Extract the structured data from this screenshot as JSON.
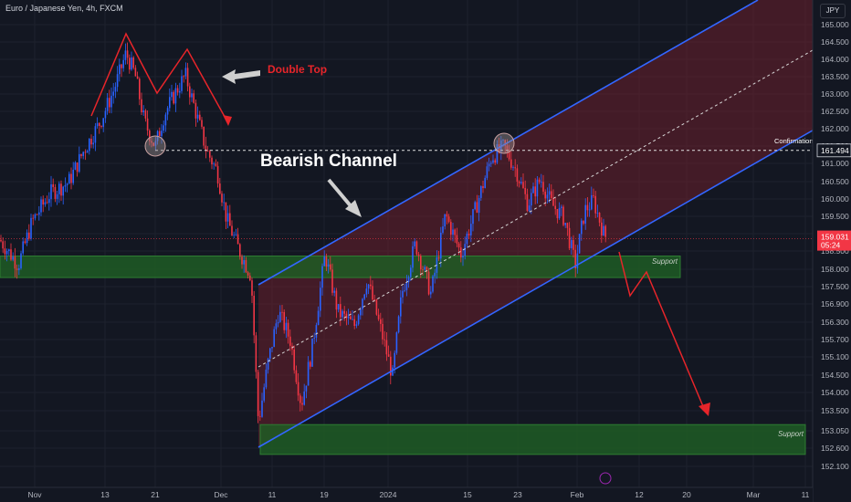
{
  "header": {
    "symbol_title": "Euro / Japanese Yen, 4h, FXCM",
    "currency": "JPY"
  },
  "chart_data": {
    "type": "candlestick",
    "ylim": [
      152.1,
      165.4
    ],
    "y_ticks": [
      "165.000",
      "164.500",
      "164.000",
      "163.500",
      "163.000",
      "162.500",
      "162.000",
      "161.500",
      "161.000",
      "160.500",
      "160.000",
      "159.500",
      "159.000",
      "158.500",
      "158.000",
      "157.500",
      "156.900",
      "156.300",
      "155.700",
      "155.100",
      "154.500",
      "154.000",
      "153.500",
      "153.050",
      "152.600",
      "152.100"
    ],
    "x_ticks": [
      "Nov",
      "13",
      "21",
      "Dec",
      "11",
      "19",
      "2024",
      "15",
      "23",
      "Feb",
      "12",
      "20",
      "Mar",
      "11"
    ],
    "price_path": [
      {
        "t": 0,
        "v": 159.0
      },
      {
        "t": 20,
        "v": 158.3
      },
      {
        "t": 35,
        "v": 159.5
      },
      {
        "t": 55,
        "v": 160.3
      },
      {
        "t": 75,
        "v": 160.6
      },
      {
        "t": 92,
        "v": 161.5
      },
      {
        "t": 110,
        "v": 162.3
      },
      {
        "t": 125,
        "v": 163.2
      },
      {
        "t": 138,
        "v": 164.2
      },
      {
        "t": 148,
        "v": 163.6
      },
      {
        "t": 158,
        "v": 162.3
      },
      {
        "t": 170,
        "v": 161.6
      },
      {
        "t": 180,
        "v": 162.5
      },
      {
        "t": 192,
        "v": 163.1
      },
      {
        "t": 203,
        "v": 163.6
      },
      {
        "t": 214,
        "v": 162.6
      },
      {
        "t": 226,
        "v": 161.5
      },
      {
        "t": 238,
        "v": 160.9
      },
      {
        "t": 248,
        "v": 159.6
      },
      {
        "t": 262,
        "v": 158.7
      },
      {
        "t": 275,
        "v": 158.0
      },
      {
        "t": 283,
        "v": 153.9
      },
      {
        "t": 293,
        "v": 155.5
      },
      {
        "t": 305,
        "v": 157.0
      },
      {
        "t": 318,
        "v": 156.2
      },
      {
        "t": 330,
        "v": 154.4
      },
      {
        "t": 342,
        "v": 156.0
      },
      {
        "t": 356,
        "v": 158.6
      },
      {
        "t": 370,
        "v": 157.0
      },
      {
        "t": 388,
        "v": 156.6
      },
      {
        "t": 402,
        "v": 157.9
      },
      {
        "t": 418,
        "v": 156.4
      },
      {
        "t": 430,
        "v": 155.2
      },
      {
        "t": 440,
        "v": 157.5
      },
      {
        "t": 455,
        "v": 158.9
      },
      {
        "t": 472,
        "v": 157.5
      },
      {
        "t": 488,
        "v": 159.7
      },
      {
        "t": 505,
        "v": 158.6
      },
      {
        "t": 520,
        "v": 159.8
      },
      {
        "t": 538,
        "v": 161.3
      },
      {
        "t": 552,
        "v": 161.6
      },
      {
        "t": 566,
        "v": 160.9
      },
      {
        "t": 578,
        "v": 160.0
      },
      {
        "t": 592,
        "v": 160.7
      },
      {
        "t": 604,
        "v": 160.0
      },
      {
        "t": 618,
        "v": 159.6
      },
      {
        "t": 630,
        "v": 158.3
      },
      {
        "t": 640,
        "v": 159.8
      },
      {
        "t": 650,
        "v": 160.1
      },
      {
        "t": 662,
        "v": 159.1
      }
    ],
    "current_price": "159.031",
    "countdown": "05:24",
    "confirmation_price": "161.494",
    "annotations": {
      "double_top": "Double Top",
      "bearish_channel": "Bearish Channel",
      "confirmation": "Confirmation",
      "support_1": "Support",
      "support_2": "Support"
    },
    "zones": [
      {
        "name": "support-upper",
        "y_top": 158.5,
        "y_bottom": 157.9
      },
      {
        "name": "support-lower",
        "y_top": 153.8,
        "y_bottom": 153.0
      }
    ],
    "colors": {
      "bull": "#2962ff",
      "bear": "#f23645",
      "channel": "#3366ff",
      "channel_fill": "#6b1f2b",
      "support_fill": "#1e5c25",
      "annotation_red": "#e8252a",
      "current_price_bg": "#f23645"
    }
  }
}
